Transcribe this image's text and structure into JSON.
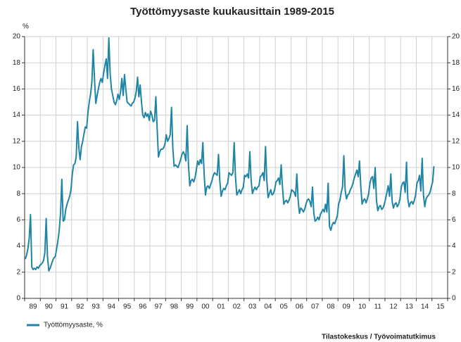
{
  "chart_data": {
    "type": "line",
    "title": "Työttömyysaste kuukausittain 1989-2015",
    "y_label": "%",
    "source": "Tilastokeskus / Työvoimatutkimus",
    "categories": [
      null,
      null,
      null,
      null,
      null,
      null,
      "89",
      null,
      null,
      null,
      null,
      null,
      null,
      null,
      null,
      null,
      null,
      null,
      "90",
      null,
      null,
      null,
      null,
      null,
      null,
      null,
      null,
      null,
      null,
      null,
      "91",
      null,
      null,
      null,
      null,
      null,
      null,
      null,
      null,
      null,
      null,
      null,
      "92",
      null,
      null,
      null,
      null,
      null,
      null,
      null,
      null,
      null,
      null,
      null,
      "93",
      null,
      null,
      null,
      null,
      null,
      null,
      null,
      null,
      null,
      null,
      null,
      "94",
      null,
      null,
      null,
      null,
      null,
      null,
      null,
      null,
      null,
      null,
      null,
      "95",
      null,
      null,
      null,
      null,
      null,
      null,
      null,
      null,
      null,
      null,
      null,
      "96",
      null,
      null,
      null,
      null,
      null,
      null,
      null,
      null,
      null,
      null,
      null,
      "97",
      null,
      null,
      null,
      null,
      null,
      null,
      null,
      null,
      null,
      null,
      null,
      "98",
      null,
      null,
      null,
      null,
      null,
      null,
      null,
      null,
      null,
      null,
      null,
      "99",
      null,
      null,
      null,
      null,
      null,
      null,
      null,
      null,
      null,
      null,
      null,
      "00",
      null,
      null,
      null,
      null,
      null,
      null,
      null,
      null,
      null,
      null,
      null,
      "01",
      null,
      null,
      null,
      null,
      null,
      null,
      null,
      null,
      null,
      null,
      null,
      "02",
      null,
      null,
      null,
      null,
      null,
      null,
      null,
      null,
      null,
      null,
      null,
      "03",
      null,
      null,
      null,
      null,
      null,
      null,
      null,
      null,
      null,
      null,
      null,
      "04",
      null,
      null,
      null,
      null,
      null,
      null,
      null,
      null,
      null,
      null,
      null,
      "05",
      null,
      null,
      null,
      null,
      null,
      null,
      null,
      null,
      null,
      null,
      null,
      "06",
      null,
      null,
      null,
      null,
      null,
      null,
      null,
      null,
      null,
      null,
      null,
      "07",
      null,
      null,
      null,
      null,
      null,
      null,
      null,
      null,
      null,
      null,
      null,
      "08",
      null,
      null,
      null,
      null,
      null,
      null,
      null,
      null,
      null,
      null,
      null,
      "09",
      null,
      null,
      null,
      null,
      null,
      null,
      null,
      null,
      null,
      null,
      null,
      "10",
      null,
      null,
      null,
      null,
      null,
      null,
      null,
      null,
      null,
      null,
      null,
      "11",
      null,
      null,
      null,
      null,
      null,
      null,
      null,
      null,
      null,
      null,
      null,
      "12",
      null,
      null,
      null,
      null,
      null,
      null,
      null,
      null,
      null,
      null,
      null,
      "13",
      null,
      null,
      null,
      null,
      null,
      null,
      null,
      null,
      null,
      null,
      null,
      "14",
      null,
      null,
      null,
      null,
      null,
      null,
      null,
      null,
      null,
      null,
      null,
      "15",
      null,
      null,
      null,
      null,
      null
    ],
    "series": [
      {
        "name": "Työttömyysaste, %",
        "color": "#1f84a6",
        "values": [
          3.0,
          3.3,
          3.8,
          4.6,
          6.4,
          2.4,
          2.2,
          2.3,
          2.2,
          2.4,
          2.3,
          2.5,
          2.6,
          2.7,
          2.9,
          3.5,
          6.1,
          3.2,
          2.1,
          2.3,
          2.6,
          2.9,
          3.1,
          3.2,
          3.8,
          4.4,
          5.2,
          6.5,
          9.1,
          5.9,
          6.0,
          6.8,
          7.2,
          7.5,
          7.8,
          8.3,
          9.5,
          10.2,
          10.3,
          10.8,
          13.5,
          11.5,
          10.6,
          11.6,
          12.0,
          12.6,
          13.1,
          13.0,
          14.2,
          15.0,
          15.6,
          16.5,
          19.0,
          16.8,
          14.9,
          15.5,
          16.0,
          16.5,
          16.8,
          16.5,
          17.2,
          17.8,
          18.3,
          16.8,
          19.9,
          17.2,
          16.0,
          15.5,
          15.0,
          14.8,
          15.1,
          15.6,
          15.2,
          15.8,
          16.8,
          15.5,
          17.1,
          16.0,
          15.0,
          14.9,
          14.8,
          14.7,
          14.9,
          15.0,
          15.3,
          15.8,
          16.9,
          15.4,
          16.3,
          15.0,
          14.0,
          13.8,
          14.2,
          13.9,
          14.1,
          13.6,
          14.3,
          14.0,
          13.5,
          13.6,
          15.4,
          13.0,
          10.8,
          11.2,
          11.4,
          11.4,
          11.5,
          11.8,
          12.5,
          12.0,
          12.2,
          12.5,
          14.6,
          11.5,
          10.1,
          10.2,
          10.1,
          10.0,
          10.3,
          10.6,
          11.0,
          11.2,
          11.0,
          10.5,
          13.2,
          10.2,
          8.6,
          9.0,
          9.1,
          8.9,
          9.2,
          9.8,
          10.5,
          10.2,
          10.6,
          10.3,
          11.9,
          9.5,
          7.9,
          8.5,
          8.6,
          8.4,
          8.7,
          9.0,
          9.4,
          9.6,
          9.5,
          9.4,
          11.0,
          9.0,
          7.8,
          8.2,
          8.4,
          8.3,
          8.6,
          8.8,
          9.6,
          9.5,
          9.4,
          9.6,
          11.9,
          9.3,
          7.9,
          8.1,
          8.3,
          8.0,
          8.3,
          8.5,
          9.4,
          9.3,
          9.5,
          9.2,
          11.2,
          9.0,
          8.0,
          8.3,
          8.5,
          8.3,
          8.5,
          8.6,
          9.3,
          9.4,
          9.6,
          9.0,
          11.6,
          9.0,
          7.7,
          8.0,
          8.3,
          7.9,
          8.0,
          8.3,
          8.9,
          9.0,
          9.2,
          8.7,
          10.2,
          8.5,
          7.2,
          7.4,
          7.5,
          7.3,
          7.5,
          7.8,
          8.3,
          8.2,
          8.1,
          7.8,
          9.5,
          7.5,
          6.5,
          6.9,
          6.8,
          6.6,
          6.8,
          7.2,
          7.5,
          7.6,
          7.4,
          7.0,
          8.5,
          6.5,
          5.9,
          6.0,
          6.2,
          6.0,
          6.4,
          6.6,
          6.8,
          6.6,
          7.2,
          6.6,
          8.8,
          5.5,
          5.2,
          5.6,
          5.8,
          5.7,
          6.0,
          6.3,
          7.2,
          7.5,
          8.1,
          8.5,
          10.9,
          8.3,
          7.6,
          7.9,
          8.0,
          8.3,
          8.5,
          8.8,
          9.2,
          9.5,
          9.8,
          9.3,
          10.5,
          8.5,
          7.2,
          7.5,
          7.6,
          7.3,
          7.6,
          8.0,
          8.8,
          9.2,
          9.3,
          8.4,
          10.0,
          7.5,
          6.7,
          7.0,
          7.1,
          6.8,
          6.9,
          7.2,
          7.6,
          8.1,
          8.6,
          7.8,
          9.5,
          7.4,
          6.9,
          7.2,
          7.3,
          7.0,
          7.2,
          7.6,
          8.5,
          8.8,
          8.9,
          8.1,
          10.4,
          7.6,
          7.0,
          7.3,
          7.4,
          7.2,
          7.5,
          7.9,
          8.8,
          9.0,
          9.4,
          8.2,
          10.7,
          7.9,
          7.0,
          7.6,
          7.8,
          7.9,
          8.1,
          8.5,
          8.9,
          10.1,
          null,
          null,
          null,
          null,
          null,
          null,
          null,
          null,
          null,
          null
        ]
      }
    ],
    "ylim": [
      0,
      20
    ],
    "yticks": [
      0,
      2,
      4,
      6,
      8,
      10,
      12,
      14,
      16,
      18,
      20
    ],
    "y2lim": [
      0,
      20
    ],
    "y2ticks": [
      0,
      2,
      4,
      6,
      8,
      10,
      12,
      14,
      16,
      18,
      20
    ],
    "grid": true,
    "legend": "bottom-left"
  }
}
